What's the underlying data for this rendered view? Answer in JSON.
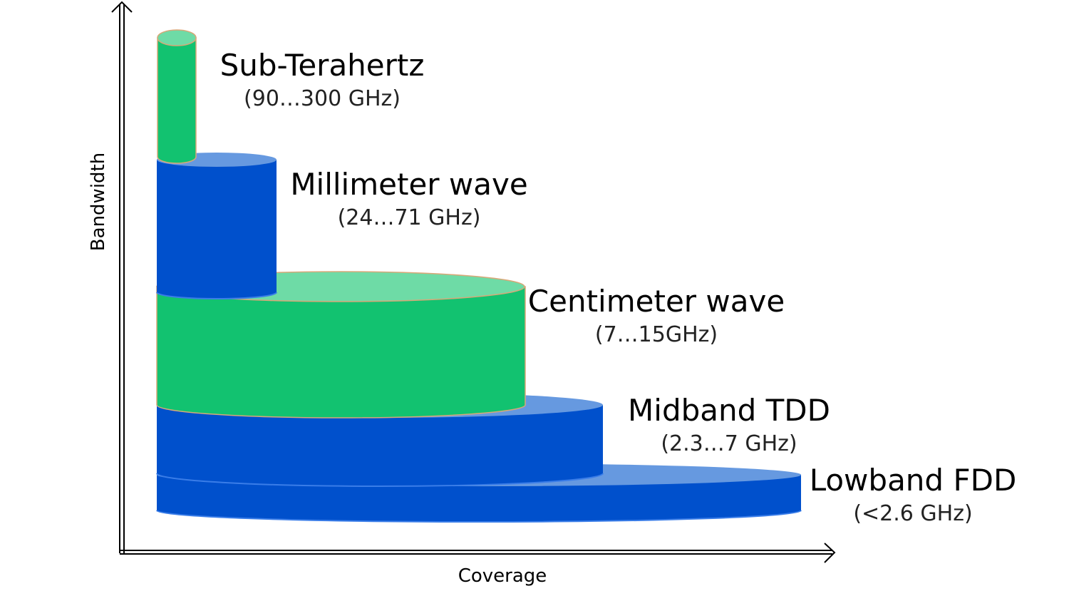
{
  "axes": {
    "y_label": "Bandwidth",
    "x_label": "Coverage"
  },
  "bands": [
    {
      "id": "lowband",
      "name": "Lowband FDD",
      "range": "(<2.6 GHz)",
      "color": "#0050cc",
      "top_color": "#6699e0"
    },
    {
      "id": "midband",
      "name": "Midband TDD",
      "range": "(2.3…7 GHz)",
      "color": "#0050cc",
      "top_color": "#6699e0"
    },
    {
      "id": "centimeter",
      "name": "Centimeter wave",
      "range": "(7…15GHz)",
      "color": "#12c270",
      "top_color": "#6edba6"
    },
    {
      "id": "millimeter",
      "name": "Millimeter wave",
      "range": "(24…71 GHz)",
      "color": "#0050cc",
      "top_color": "#6699e0"
    },
    {
      "id": "subthz",
      "name": "Sub-Terahertz",
      "range": "(90…300 GHz)",
      "color": "#12c270",
      "top_color": "#6edba6"
    }
  ]
}
